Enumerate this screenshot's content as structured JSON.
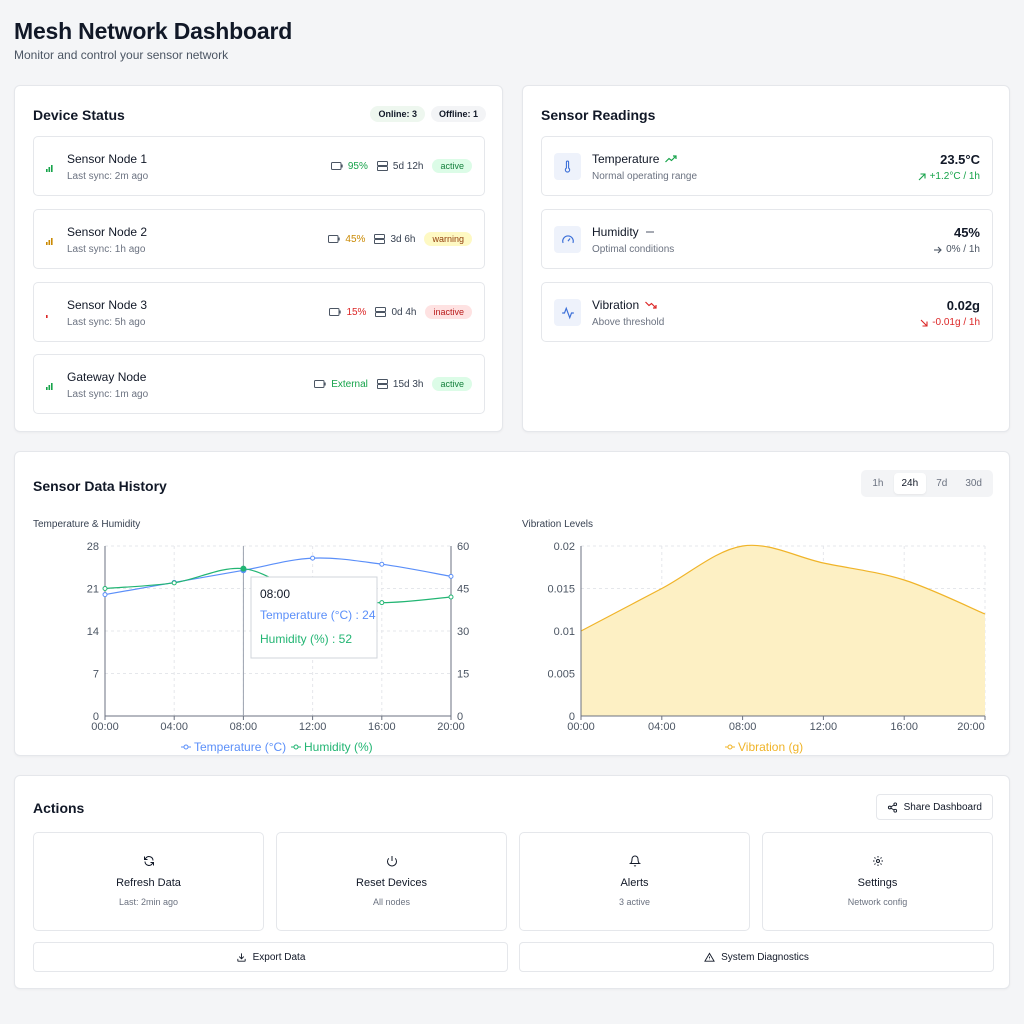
{
  "header": {
    "title": "Mesh Network Dashboard",
    "subtitle": "Monitor and control your sensor network"
  },
  "device_status": {
    "title": "Device Status",
    "online": "Online: 3",
    "offline": "Offline: 1",
    "devices": [
      {
        "name": "Sensor Node 1",
        "sync": "Last sync: 2m ago",
        "battery": "95%",
        "battery_color": "#16a34a",
        "uptime": "5d 12h",
        "status": "active",
        "signal_bars": 3,
        "signal_color": "#16a34a"
      },
      {
        "name": "Sensor Node 2",
        "sync": "Last sync: 1h ago",
        "battery": "45%",
        "battery_color": "#ca8a04",
        "uptime": "3d 6h",
        "status": "warning",
        "signal_bars": 3,
        "signal_color": "#ca8a04"
      },
      {
        "name": "Sensor Node 3",
        "sync": "Last sync: 5h ago",
        "battery": "15%",
        "battery_color": "#dc2626",
        "uptime": "0d 4h",
        "status": "inactive",
        "signal_bars": 1,
        "signal_color": "#dc2626"
      },
      {
        "name": "Gateway Node",
        "sync": "Last sync: 1m ago",
        "battery": "External",
        "battery_color": "#16a34a",
        "uptime": "15d 3h",
        "status": "active",
        "signal_bars": 3,
        "signal_color": "#16a34a"
      }
    ]
  },
  "sensor_readings": {
    "title": "Sensor Readings",
    "items": [
      {
        "name": "Temperature",
        "desc": "Normal operating range",
        "value": "23.5°C",
        "change": "+1.2°C / 1h",
        "trend": "up",
        "color": "#16a34a",
        "icon": "thermometer-icon"
      },
      {
        "name": "Humidity",
        "desc": "Optimal conditions",
        "value": "45%",
        "change": "0% / 1h",
        "trend": "flat",
        "color": "#4b5563",
        "icon": "gauge-icon"
      },
      {
        "name": "Vibration",
        "desc": "Above threshold",
        "value": "0.02g",
        "change": "-0.01g / 1h",
        "trend": "down",
        "color": "#dc2626",
        "icon": "activity-icon"
      }
    ]
  },
  "history": {
    "title": "Sensor Data History",
    "ranges": [
      "1h",
      "24h",
      "7d",
      "30d"
    ],
    "selected_range": "24h",
    "chart1_label": "Temperature & Humidity",
    "chart2_label": "Vibration Levels",
    "tooltip": {
      "title": "08:00",
      "temp": "Temperature (°C) : 24",
      "hum": "Humidity (%) : 52"
    }
  },
  "chart_data": [
    {
      "type": "line",
      "title": "Temperature & Humidity",
      "x": [
        "00:00",
        "04:00",
        "08:00",
        "12:00",
        "16:00",
        "20:00"
      ],
      "series": [
        {
          "name": "Temperature (°C)",
          "values": [
            20,
            22,
            24,
            26,
            25,
            23
          ],
          "color": "#5b8ff9",
          "axis": "left"
        },
        {
          "name": "Humidity (%)",
          "values": [
            45,
            47,
            52,
            42,
            40,
            42
          ],
          "color": "#22b573",
          "axis": "right"
        }
      ],
      "ylim_left": [
        0,
        28
      ],
      "yticks_left": [
        0,
        7,
        14,
        21,
        28
      ],
      "ylim_right": [
        0,
        60
      ],
      "yticks_right": [
        0,
        15,
        30,
        45,
        60
      ],
      "grid": true,
      "legend": "bottom"
    },
    {
      "type": "area",
      "title": "Vibration Levels",
      "x": [
        "00:00",
        "04:00",
        "08:00",
        "12:00",
        "16:00",
        "20:00"
      ],
      "series": [
        {
          "name": "Vibration (g)",
          "values": [
            0.01,
            0.015,
            0.02,
            0.018,
            0.016,
            0.012
          ],
          "color": "#f0b429",
          "fill": "#fdf0c4"
        }
      ],
      "ylim": [
        0,
        0.02
      ],
      "yticks": [
        "0",
        "0.005",
        "0.01",
        "0.015",
        "0.02"
      ],
      "grid": true,
      "legend": "bottom"
    }
  ],
  "actions": {
    "title": "Actions",
    "share": "Share Dashboard",
    "tiles": [
      {
        "label": "Refresh Data",
        "sub": "Last: 2min ago",
        "icon": "refresh-icon"
      },
      {
        "label": "Reset Devices",
        "sub": "All nodes",
        "icon": "power-icon"
      },
      {
        "label": "Alerts",
        "sub": "3 active",
        "icon": "bell-icon"
      },
      {
        "label": "Settings",
        "sub": "Network config",
        "icon": "gear-icon"
      }
    ],
    "export": "Export Data",
    "diagnostics": "System Diagnostics"
  }
}
